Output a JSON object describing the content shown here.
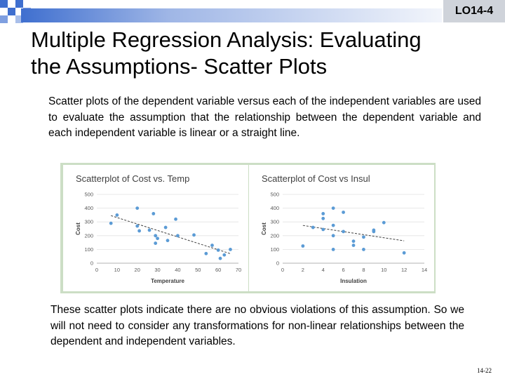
{
  "header": {
    "badge": "LO14-4"
  },
  "title_line1": "Multiple Regression Analysis: Evaluating",
  "title_line2": "the Assumptions- Scatter Plots",
  "intro_text": "Scatter plots of the dependent variable versus each of the independent variables are used to evaluate the assumption that the relationship between the dependent variable and each independent variable is linear or a straight line.",
  "conclusion_text": "These scatter plots indicate there are no obvious violations of this assumption.   So we will not need to consider any transformations for non-linear relationships between the dependent and independent variables.",
  "page_number": "14-22",
  "colors": {
    "point": "#5b9bd5",
    "trend": "#404040",
    "panel_border": "#ccdec5",
    "band": "#3f6fcf"
  },
  "chart_data": [
    {
      "type": "scatter",
      "title": "Scatterplot of Cost vs. Temp",
      "xlabel": "Temperature",
      "ylabel": "Cost",
      "xlim": [
        0,
        70
      ],
      "ylim": [
        0,
        500
      ],
      "xticks": [
        "0",
        "10",
        "20",
        "30",
        "40",
        "50",
        "60",
        "70"
      ],
      "yticks": [
        "0",
        "100",
        "200",
        "300",
        "400",
        "500"
      ],
      "grid": "horizontal",
      "trendline": "linear",
      "x": [
        7,
        10,
        20,
        20,
        21,
        26,
        28,
        29,
        29,
        30,
        34,
        35,
        39,
        40,
        48,
        54,
        57,
        60,
        61,
        63,
        66
      ],
      "y": [
        290,
        350,
        400,
        270,
        235,
        240,
        360,
        200,
        145,
        180,
        260,
        165,
        320,
        200,
        205,
        70,
        130,
        95,
        35,
        60,
        100
      ]
    },
    {
      "type": "scatter",
      "title": "Scatterplot of Cost vs Insul",
      "xlabel": "Insulation",
      "ylabel": "Cost",
      "xlim": [
        0,
        14
      ],
      "ylim": [
        0,
        500
      ],
      "xticks": [
        "0",
        "2",
        "4",
        "6",
        "8",
        "10",
        "12",
        "14"
      ],
      "yticks": [
        "0",
        "100",
        "200",
        "300",
        "400",
        "500"
      ],
      "grid": "horizontal",
      "trendline": "linear",
      "x": [
        2,
        3,
        4,
        4,
        4,
        5,
        5,
        5,
        5,
        6,
        6,
        7,
        7,
        8,
        8,
        9,
        9,
        10,
        12
      ],
      "y": [
        125,
        260,
        360,
        325,
        245,
        400,
        275,
        200,
        100,
        370,
        230,
        160,
        130,
        190,
        100,
        230,
        240,
        295,
        75
      ]
    }
  ]
}
